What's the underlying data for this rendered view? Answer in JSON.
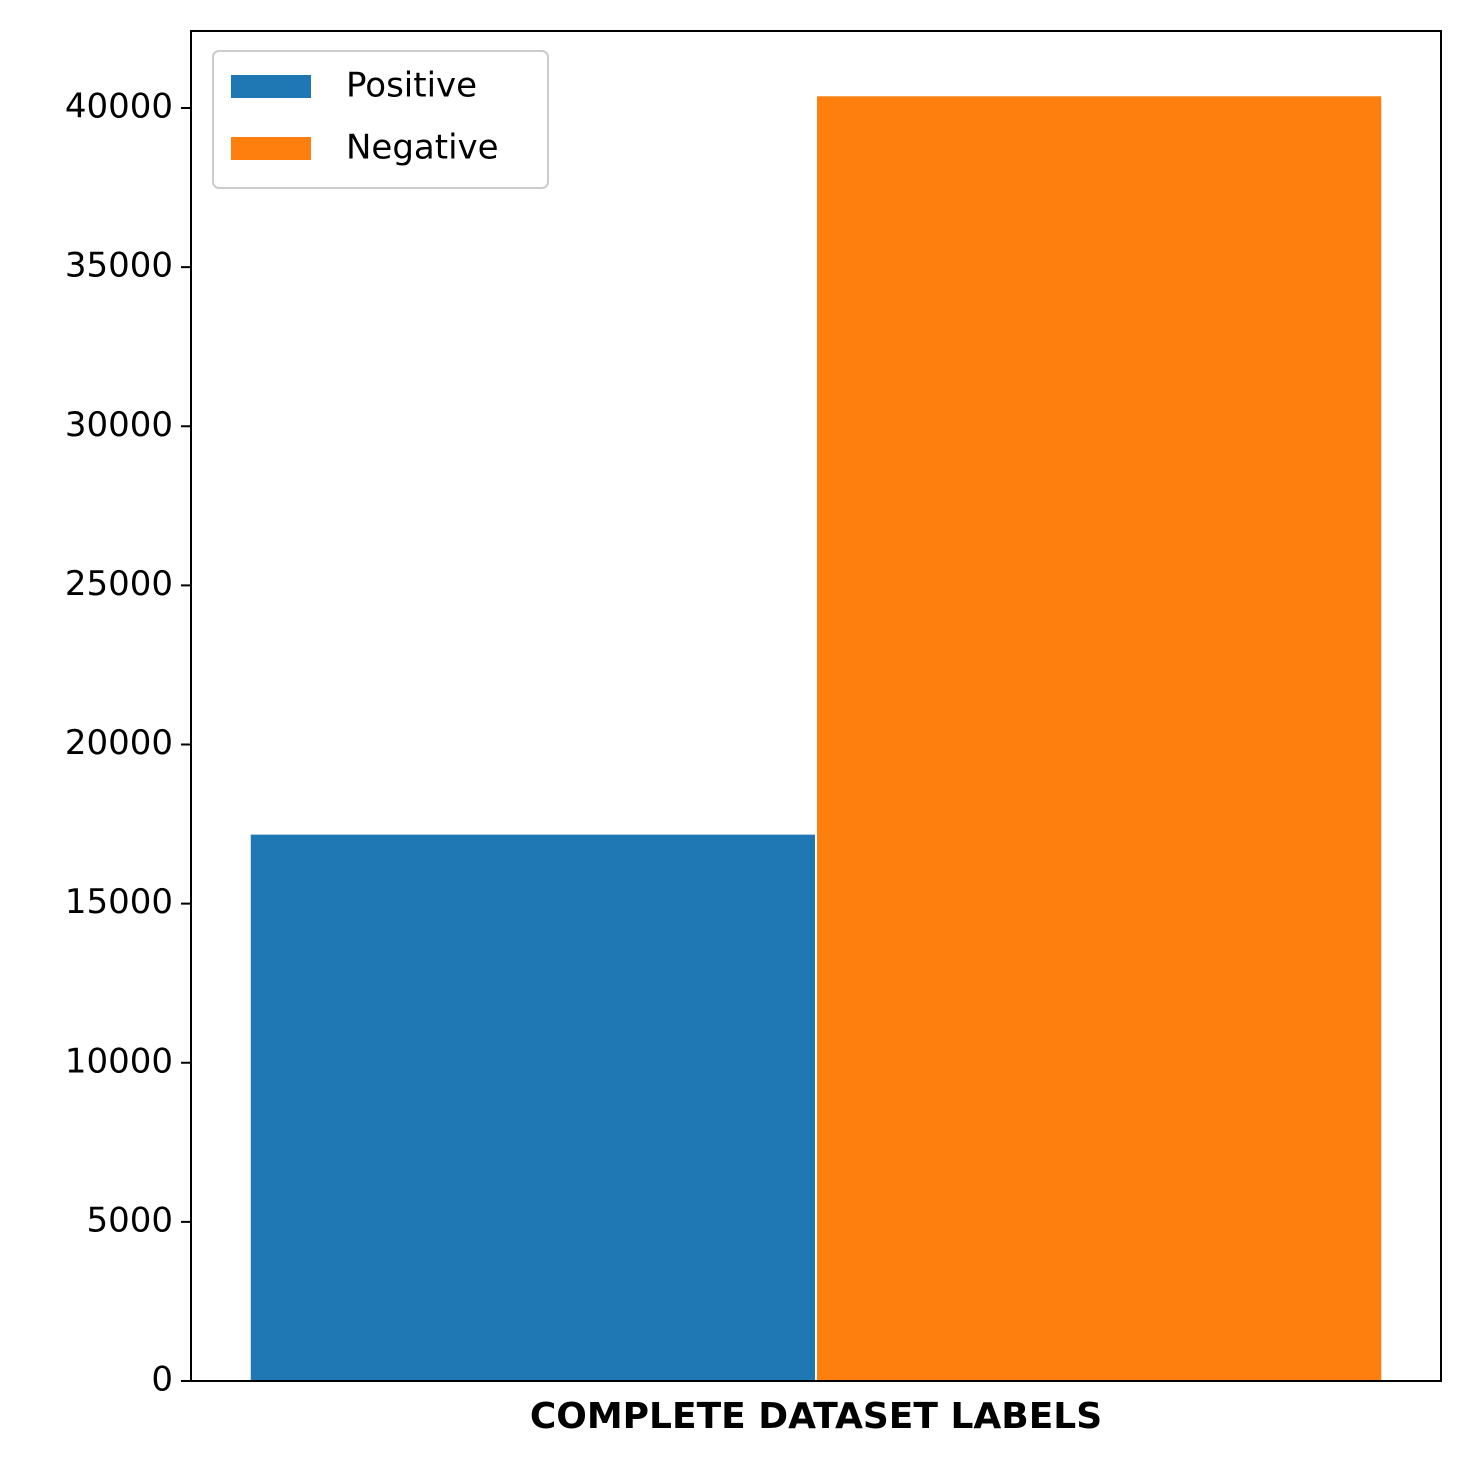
{
  "chart_data": {
    "type": "bar",
    "x_label": "COMPLETE DATASET LABELS",
    "categories": [
      null
    ],
    "series": [
      {
        "name": "Positive",
        "color": "#1f77b4",
        "values": [
          17200
        ]
      },
      {
        "name": "Negative",
        "color": "#ff7f0e",
        "values": [
          40400
        ]
      }
    ],
    "ylim": [
      0,
      42420
    ],
    "yticks": [
      0,
      5000,
      10000,
      15000,
      20000,
      25000,
      30000,
      35000,
      40000
    ],
    "legend": "upper left",
    "grid": false
  }
}
